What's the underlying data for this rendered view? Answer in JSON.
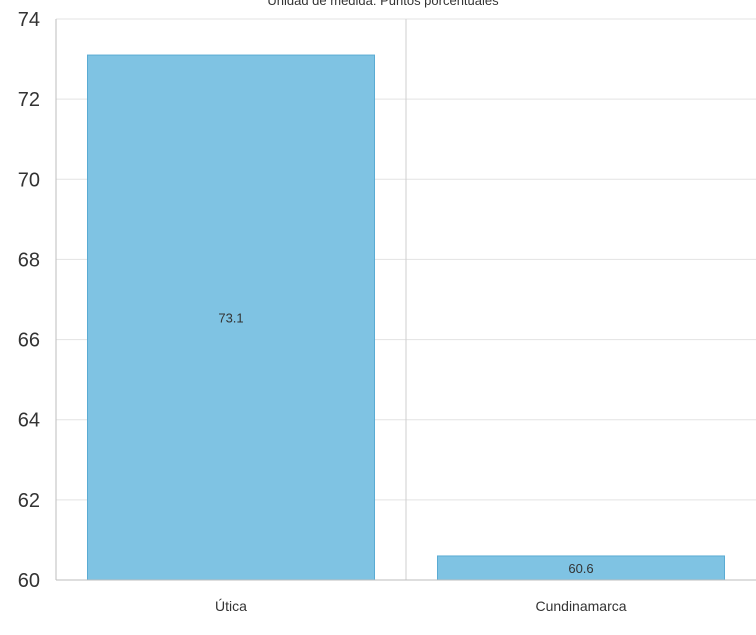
{
  "chart_data": {
    "type": "bar",
    "subtitle": "Unidad de medida: Puntos porcentuales",
    "categories": [
      "Útica",
      "Cundinamarca"
    ],
    "values": [
      73.1,
      60.6
    ],
    "data_labels": [
      "73.1",
      "60.6"
    ],
    "ylim": [
      60,
      74
    ],
    "yticks": [
      "60",
      "62",
      "64",
      "66",
      "68",
      "70",
      "72",
      "74"
    ],
    "grid": true,
    "bar_color": "#7fc3e3",
    "bar_edge_color": "#5aabd3"
  }
}
